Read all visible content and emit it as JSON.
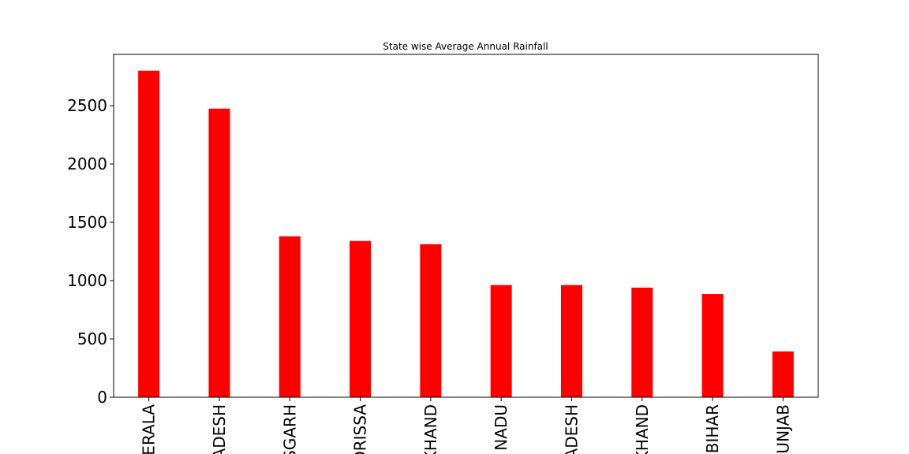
{
  "chart_data": {
    "type": "bar",
    "title": "State wise Average Annual Rainfall",
    "xlabel": "",
    "ylabel": "",
    "categories": [
      "ERALA",
      "ADESH",
      "SGARH",
      "ORISSA",
      "KHAND",
      "NADU",
      "ADESH",
      "KHAND",
      "BIHAR",
      "UNJAB"
    ],
    "values": [
      2800,
      2475,
      1380,
      1340,
      1312,
      962,
      962,
      940,
      885,
      393
    ],
    "ylim": [
      0,
      2940
    ],
    "yticks": [
      0,
      500,
      1000,
      1500,
      2000,
      2500
    ],
    "bar_color": "#ff0000",
    "grid": false,
    "legend": "none"
  }
}
